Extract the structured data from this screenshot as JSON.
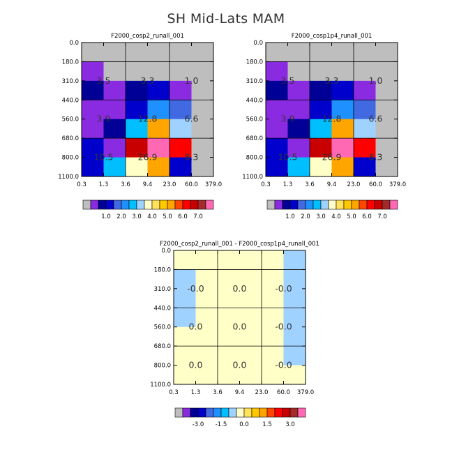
{
  "figure": {
    "title": "SH Mid-Lats MAM"
  },
  "colors": {
    "ctrl": [
      "#bebebe",
      "#8a2be2",
      "#000096",
      "#0000cd",
      "#4169e1",
      "#1e90ff",
      "#00bfff",
      "#a0d2ff",
      "#ffffc8",
      "#ffe15a",
      "#ffc800",
      "#ffa500",
      "#ff4500",
      "#ff0000",
      "#c80000",
      "#a52a2a",
      "#ff69b4"
    ],
    "diff": [
      "#bebebe",
      "#8a2be2",
      "#000096",
      "#0000cd",
      "#4169e1",
      "#1e90ff",
      "#00bfff",
      "#a0d2ff",
      "#ffffc8",
      "#ffe15a",
      "#ffc800",
      "#ffa500",
      "#ff4500",
      "#ff0000",
      "#c80000",
      "#a52a2a",
      "#ff69b4"
    ]
  },
  "chart_data": [
    {
      "type": "heatmap",
      "title": "F2000_cosp2_runall_001",
      "x_tick_labels": [
        "0.3",
        "1.3",
        "3.6",
        "9.4",
        "23.0",
        "60.0",
        "379.0"
      ],
      "y_tick_labels": [
        "0.0",
        "180.0",
        "310.0",
        "440.0",
        "560.0",
        "680.0",
        "800.0",
        "1100.0"
      ],
      "cell_colors": [
        [
          0,
          0,
          0,
          0,
          0,
          0
        ],
        [
          1,
          0,
          0,
          0,
          0,
          0
        ],
        [
          2,
          1,
          2,
          3,
          1,
          0
        ],
        [
          1,
          1,
          3,
          5,
          4,
          0
        ],
        [
          1,
          2,
          6,
          11,
          7,
          0
        ],
        [
          3,
          1,
          14,
          16,
          13,
          0
        ],
        [
          3,
          6,
          8,
          11,
          3,
          0
        ]
      ],
      "totals": [
        {
          "value": "3.5",
          "col": 0,
          "row": 1
        },
        {
          "value": "3.3",
          "col": 1,
          "row": 1
        },
        {
          "value": "1.0",
          "col": 2,
          "row": 1
        },
        {
          "value": "3.9",
          "col": 0,
          "row": 2
        },
        {
          "value": "12.8",
          "col": 1,
          "row": 2
        },
        {
          "value": "6.6",
          "col": 2,
          "row": 2
        },
        {
          "value": "10.5",
          "col": 0,
          "row": 3
        },
        {
          "value": "26.9",
          "col": 1,
          "row": 3
        },
        {
          "value": "8.3",
          "col": 2,
          "row": 3
        }
      ],
      "colorbar_labels": [
        "1.0",
        "2.0",
        "3.0",
        "4.0",
        "5.0",
        "6.0",
        "7.0"
      ]
    },
    {
      "type": "heatmap",
      "title": "F2000_cosp1p4_runall_001",
      "x_tick_labels": [
        "0.3",
        "1.3",
        "3.6",
        "9.4",
        "23.0",
        "60.0",
        "379.0"
      ],
      "y_tick_labels": [
        "0.0",
        "180.0",
        "310.0",
        "440.0",
        "560.0",
        "680.0",
        "800.0",
        "1100.0"
      ],
      "cell_colors": [
        [
          0,
          0,
          0,
          0,
          0,
          0
        ],
        [
          1,
          0,
          0,
          0,
          0,
          0
        ],
        [
          2,
          1,
          2,
          3,
          1,
          0
        ],
        [
          1,
          1,
          3,
          5,
          4,
          0
        ],
        [
          1,
          2,
          6,
          11,
          7,
          0
        ],
        [
          3,
          1,
          14,
          16,
          13,
          0
        ],
        [
          3,
          6,
          8,
          11,
          3,
          0
        ]
      ],
      "totals": [
        {
          "value": "3.5",
          "col": 0,
          "row": 1
        },
        {
          "value": "3.3",
          "col": 1,
          "row": 1
        },
        {
          "value": "1.0",
          "col": 2,
          "row": 1
        },
        {
          "value": "3.9",
          "col": 0,
          "row": 2
        },
        {
          "value": "12.8",
          "col": 1,
          "row": 2
        },
        {
          "value": "6.6",
          "col": 2,
          "row": 2
        },
        {
          "value": "10.5",
          "col": 0,
          "row": 3
        },
        {
          "value": "26.9",
          "col": 1,
          "row": 3
        },
        {
          "value": "8.3",
          "col": 2,
          "row": 3
        }
      ],
      "colorbar_labels": [
        "1.0",
        "2.0",
        "3.0",
        "4.0",
        "5.0",
        "6.0",
        "7.0"
      ]
    },
    {
      "type": "heatmap",
      "title": "F2000_cosp2_runall_001 - F2000_cosp1p4_runall_001",
      "x_tick_labels": [
        "0.3",
        "1.3",
        "3.6",
        "9.4",
        "23.0",
        "60.0",
        "379.0"
      ],
      "y_tick_labels": [
        "0.0",
        "180.0",
        "310.0",
        "440.0",
        "560.0",
        "680.0",
        "800.0",
        "1100.0"
      ],
      "cell_colors": [
        [
          8,
          8,
          8,
          8,
          8,
          7
        ],
        [
          7,
          8,
          8,
          8,
          8,
          7
        ],
        [
          7,
          8,
          8,
          8,
          8,
          7
        ],
        [
          7,
          8,
          8,
          8,
          8,
          7
        ],
        [
          8,
          8,
          8,
          8,
          8,
          7
        ],
        [
          8,
          8,
          8,
          8,
          8,
          7
        ],
        [
          8,
          8,
          8,
          8,
          8,
          8
        ]
      ],
      "totals": [
        {
          "value": "-0.0",
          "col": 0,
          "row": 1
        },
        {
          "value": "0.0",
          "col": 1,
          "row": 1
        },
        {
          "value": "-0.0",
          "col": 2,
          "row": 1
        },
        {
          "value": "0.0",
          "col": 0,
          "row": 2
        },
        {
          "value": "0.0",
          "col": 1,
          "row": 2
        },
        {
          "value": "-0.0",
          "col": 2,
          "row": 2
        },
        {
          "value": "0.0",
          "col": 0,
          "row": 3
        },
        {
          "value": "0.0",
          "col": 1,
          "row": 3
        },
        {
          "value": "-0.0",
          "col": 2,
          "row": 3
        }
      ],
      "colorbar_labels": [
        "-3.0",
        "-1.5",
        "0.0",
        "1.5",
        "3.0"
      ]
    }
  ]
}
